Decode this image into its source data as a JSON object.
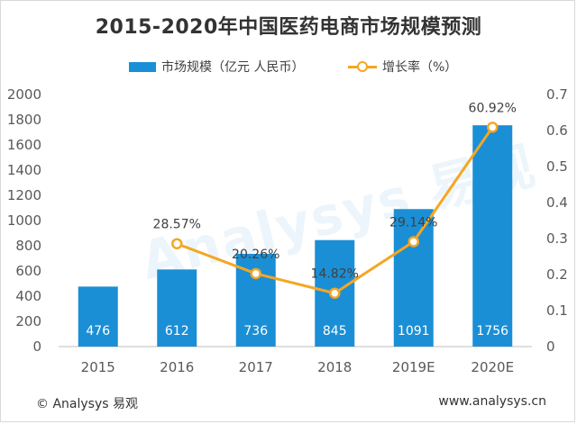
{
  "chart_data": {
    "type": "bar",
    "title": "2015-2020年中国医药电商市场规模预测",
    "categories": [
      "2015",
      "2016",
      "2017",
      "2018",
      "2019E",
      "2020E"
    ],
    "series": [
      {
        "name": "市场规模（亿元 人民币）",
        "type": "bar",
        "axis": "left",
        "values": [
          476,
          612,
          736,
          845,
          1091,
          1756
        ],
        "data_labels": [
          "476",
          "612",
          "736",
          "845",
          "1091",
          "1756"
        ],
        "color": "#1a8fd6"
      },
      {
        "name": "增长率（%）",
        "type": "line",
        "axis": "right",
        "values": [
          null,
          0.2857,
          0.2026,
          0.1482,
          0.2914,
          0.6092
        ],
        "data_labels": [
          "",
          "28.57%",
          "20.26%",
          "14.82%",
          "29.14%",
          "60.92%"
        ],
        "color": "#f5a623"
      }
    ],
    "ylim_left": [
      0,
      2000
    ],
    "yticks_left": [
      "0",
      "200",
      "400",
      "600",
      "800",
      "1000",
      "1200",
      "1400",
      "1600",
      "1800",
      "2000"
    ],
    "ylim_right": [
      0,
      0.7
    ],
    "yticks_right": [
      "0",
      "0.1",
      "0.2",
      "0.3",
      "0.4",
      "0.5",
      "0.6",
      "0.7"
    ],
    "grid": false,
    "legend": "top-center"
  },
  "watermark": "Analysys 易观",
  "footer": {
    "left": "© Analysys 易观",
    "right": "www.analysys.cn"
  }
}
